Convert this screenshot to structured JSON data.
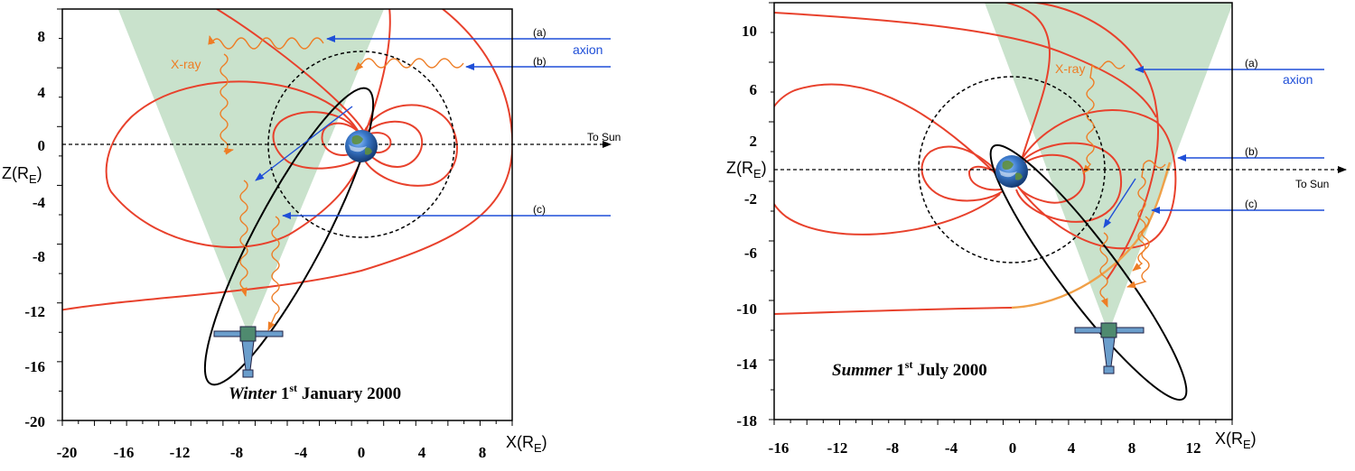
{
  "panels": [
    {
      "id": "winter",
      "caption_season": "Winter",
      "caption_day": "1",
      "caption_sup": "st",
      "caption_rest": "January 2000",
      "y_ticks": [
        "8",
        "4",
        "0",
        "-4",
        "-8",
        "-12",
        "-16",
        "-20"
      ],
      "x_ticks": [
        "-20",
        "-16",
        "-12",
        "-8",
        "-4",
        "0",
        "4",
        "8"
      ],
      "ylabel": "Z(R",
      "ylabel_sub": "E",
      "ylabel_close": ")",
      "xlabel": "X(R",
      "xlabel_sub": "E",
      "xlabel_close": ")",
      "labels": {
        "a": "(a)",
        "b": "(b)",
        "c": "(c)",
        "axion": "axion",
        "xray": "X-ray",
        "to_sun": "To Sun"
      }
    },
    {
      "id": "summer",
      "caption_season": "Summer",
      "caption_day": "1",
      "caption_sup": "st",
      "caption_rest": "July 2000",
      "y_ticks": [
        "10",
        "6",
        "2",
        "-2",
        "-6",
        "-10",
        "-14",
        "-18"
      ],
      "x_ticks": [
        "-16",
        "-12",
        "-8",
        "-4",
        "0",
        "4",
        "8",
        "12"
      ],
      "ylabel": "Z(R",
      "ylabel_sub": "E",
      "ylabel_close": ")",
      "xlabel": "X(R",
      "xlabel_sub": "E",
      "xlabel_close": ")",
      "labels": {
        "a": "(a)",
        "b": "(b)",
        "c": "(c)",
        "axion": "axion",
        "xray": "X-ray",
        "to_sun": "To Sun"
      }
    }
  ],
  "colors": {
    "field_lines": "#e8412c",
    "magnetopause_orange": "#f0a048",
    "orbit": "#000000",
    "axion_arrow": "#1f4fd8",
    "xray": "#ee7d25",
    "fov_cone": "#c9e2cc"
  }
}
